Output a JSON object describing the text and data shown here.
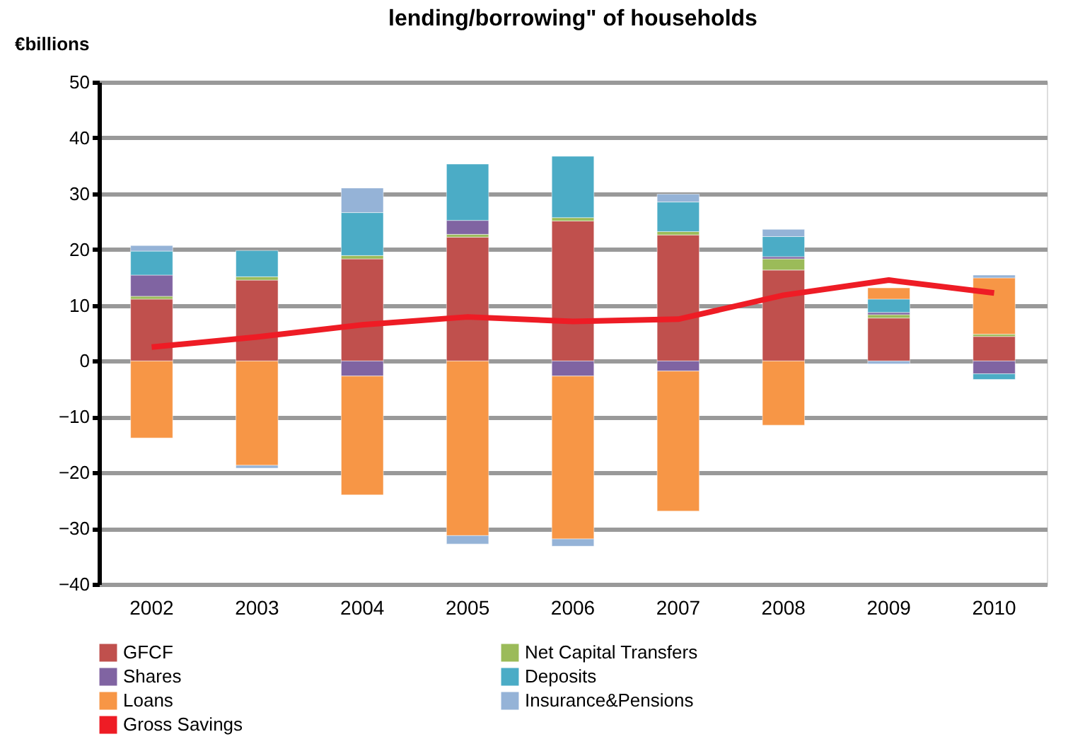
{
  "chart_data": {
    "type": "bar",
    "title": "lending/borrowing\" of households",
    "ylabel": "€billions",
    "stacked": true,
    "categories": [
      "2002",
      "2003",
      "2004",
      "2005",
      "2006",
      "2007",
      "2008",
      "2009",
      "2010"
    ],
    "ylim": [
      -40,
      50
    ],
    "yticks": [
      -40,
      -30,
      -20,
      -10,
      0,
      10,
      20,
      30,
      40,
      50
    ],
    "grid": "y",
    "legend": "bottom",
    "series": [
      {
        "name": "GFCF",
        "color": "#c0504d",
        "values": [
          11.1,
          14.5,
          18.3,
          22.2,
          25.1,
          22.6,
          16.3,
          7.7,
          4.4
        ]
      },
      {
        "name": "Net Capital Transfers",
        "color": "#9bbb59",
        "values": [
          0.5,
          0.6,
          0.6,
          0.5,
          0.6,
          0.6,
          2.0,
          0.6,
          0.4
        ]
      },
      {
        "name": "Shares",
        "color": "#8064a2",
        "values": [
          3.8,
          null,
          -2.7,
          2.5,
          -2.7,
          -1.8,
          0.4,
          0.4,
          -2.3
        ]
      },
      {
        "name": "Deposits",
        "color": "#4bacc6",
        "values": [
          4.3,
          4.7,
          7.7,
          10.1,
          11.0,
          5.3,
          3.6,
          2.4,
          -1.0
        ]
      },
      {
        "name": "Loans",
        "color": "#f79646",
        "values": [
          -13.8,
          -18.7,
          -21.3,
          -31.3,
          -29.2,
          -25.1,
          -11.5,
          2.0,
          10.1
        ]
      },
      {
        "name": "Insurance&Pensions",
        "color": "#95b3d7",
        "values": [
          1.0,
          -0.5,
          4.4,
          -1.5,
          -1.3,
          1.4,
          1.3,
          -0.5,
          0.5
        ]
      },
      {
        "name": "Gross Savings",
        "type": "line",
        "color": "#ee1c25",
        "values": [
          2.5,
          4.3,
          6.5,
          7.9,
          7.1,
          7.5,
          11.8,
          14.5,
          12.2
        ]
      }
    ]
  }
}
